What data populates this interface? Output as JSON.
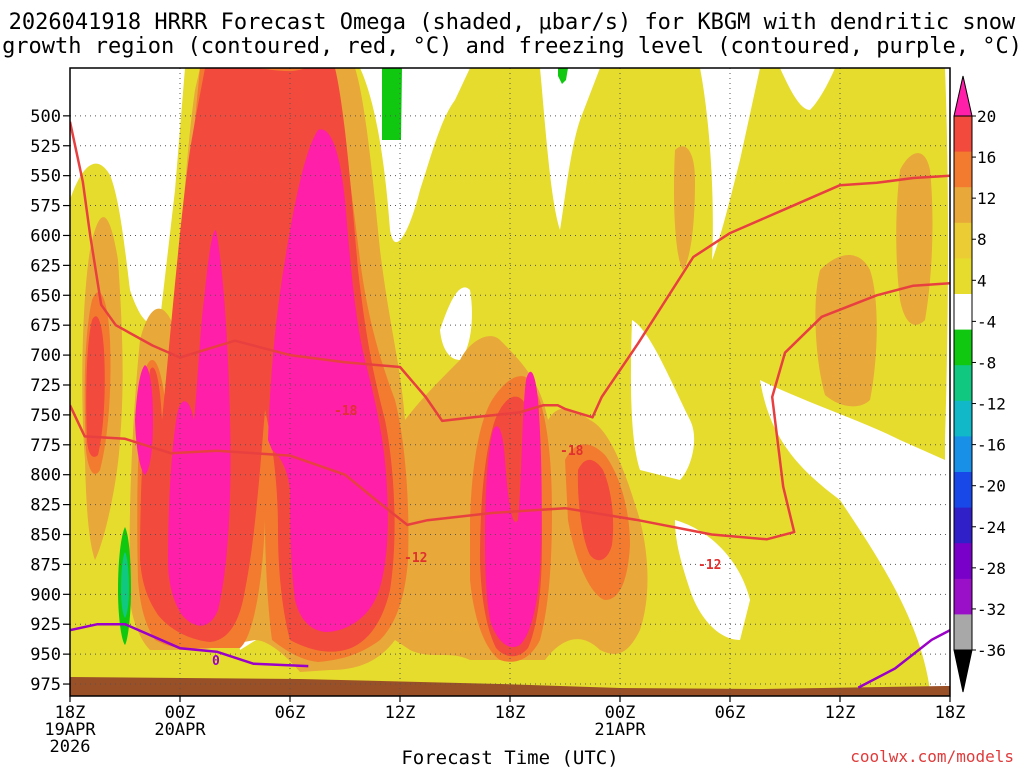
{
  "chart_data": {
    "type": "heatmap",
    "title_line1": "2026041918 HRRR Forecast Omega (shaded, μbar/s) for KBGM with dendritic snow",
    "title_line2": "growth region (contoured, red, °C) and freezing level (contoured, purple, °C)",
    "xlabel": "Forecast Time (UTC)",
    "ylabel": "",
    "credit": "coolwx.com/models",
    "x_range_hours": [
      0,
      48
    ],
    "y_range_hpa": [
      460,
      985
    ],
    "x_ticks": [
      {
        "hour": 0,
        "lines": [
          "18Z",
          "19APR",
          "2026"
        ]
      },
      {
        "hour": 6,
        "lines": [
          "00Z",
          "20APR"
        ]
      },
      {
        "hour": 12,
        "lines": [
          "06Z"
        ]
      },
      {
        "hour": 18,
        "lines": [
          "12Z"
        ]
      },
      {
        "hour": 24,
        "lines": [
          "18Z"
        ]
      },
      {
        "hour": 30,
        "lines": [
          "00Z",
          "21APR"
        ]
      },
      {
        "hour": 36,
        "lines": [
          "06Z"
        ]
      },
      {
        "hour": 42,
        "lines": [
          "12Z"
        ]
      },
      {
        "hour": 48,
        "lines": [
          "18Z"
        ]
      }
    ],
    "y_ticks": [
      "500",
      "525",
      "550",
      "575",
      "600",
      "625",
      "650",
      "675",
      "700",
      "725",
      "750",
      "775",
      "800",
      "825",
      "850",
      "875",
      "900",
      "925",
      "950",
      "975"
    ],
    "colorbar_labels": [
      "20",
      "16",
      "12",
      "8",
      "4",
      "-4",
      "-8",
      "-12",
      "-16",
      "-20",
      "-24",
      "-28",
      "-32",
      "-36"
    ],
    "colorbar_colors": [
      "#ff1fa8",
      "#f24a3c",
      "#f27b30",
      "#e8a83a",
      "#eccc34",
      "#e6dc2e",
      "#ffffff",
      "#10c810",
      "#10c880",
      "#10b8c8",
      "#1890e8",
      "#1848e8",
      "#3020c8",
      "#7800c8",
      "#9a10c8",
      "#a8a8a8",
      "#000000"
    ],
    "contour_levels": {
      "dendritic_red_degC": [
        "-18",
        "-12"
      ],
      "freezing_purple_degC": [
        "0"
      ]
    },
    "series": [
      {
        "name": "-12C contour (left)",
        "color": "#e84040",
        "points": [
          [
            0,
            742
          ],
          [
            0.8,
            768
          ],
          [
            3,
            770
          ],
          [
            5.5,
            782
          ],
          [
            8,
            780
          ],
          [
            12,
            784
          ],
          [
            15,
            800
          ],
          [
            17,
            825
          ],
          [
            18.4,
            842
          ],
          [
            19.5,
            838
          ],
          [
            23,
            832
          ],
          [
            27,
            828
          ],
          [
            31,
            838
          ],
          [
            35,
            850
          ],
          [
            38,
            854
          ],
          [
            39.5,
            848
          ],
          [
            38.9,
            810
          ],
          [
            38.3,
            735
          ],
          [
            39,
            698
          ],
          [
            41,
            668
          ],
          [
            44,
            650
          ],
          [
            46,
            642
          ],
          [
            48,
            640
          ]
        ]
      },
      {
        "name": "-18C contour (left)",
        "color": "#e84040",
        "points": [
          [
            0,
            505
          ],
          [
            0.7,
            555
          ],
          [
            1.1,
            600
          ],
          [
            1.7,
            658
          ],
          [
            2.5,
            675
          ],
          [
            4.5,
            692
          ],
          [
            6,
            702
          ],
          [
            9,
            688
          ],
          [
            12,
            700
          ],
          [
            15,
            706
          ],
          [
            18,
            710
          ],
          [
            19.4,
            735
          ],
          [
            20.3,
            755
          ],
          [
            22,
            752
          ],
          [
            24.5,
            748
          ],
          [
            25.8,
            742
          ],
          [
            26.6,
            742
          ],
          [
            27,
            745
          ],
          [
            28.5,
            752
          ],
          [
            29,
            735
          ],
          [
            31,
            690
          ],
          [
            34,
            618
          ],
          [
            36,
            598
          ],
          [
            39,
            578
          ],
          [
            42,
            558
          ],
          [
            44,
            556
          ],
          [
            46,
            552
          ],
          [
            48,
            550
          ]
        ]
      },
      {
        "name": "0C freezing level",
        "color": "#9a00c8",
        "points": [
          [
            0,
            930
          ],
          [
            1.5,
            925
          ],
          [
            3,
            925
          ],
          [
            4.5,
            935
          ],
          [
            6,
            945
          ],
          [
            8,
            948
          ],
          [
            10,
            958
          ],
          [
            13,
            960
          ]
        ],
        "label": "0"
      },
      {
        "name": "0C freezing level (day 2)",
        "color": "#9a00c8",
        "points": [
          [
            43,
            978
          ],
          [
            45,
            962
          ],
          [
            47,
            938
          ],
          [
            48,
            930
          ]
        ]
      }
    ],
    "shaded_regions": [
      {
        "value": "4 to 8",
        "desc": "broad weak ascent 0Z-18Z 20APR and through 21APR"
      },
      {
        "value": ">20",
        "desc": "strong ascent max near 700-850 hPa around 06Z-12Z 20APR and 17Z-18Z 20APR"
      },
      {
        "value": "-4 to -12",
        "desc": "small descent patches near 500 hPa at 11Z and 20Z, and near 875 hPa at 21Z 19APR"
      }
    ]
  }
}
